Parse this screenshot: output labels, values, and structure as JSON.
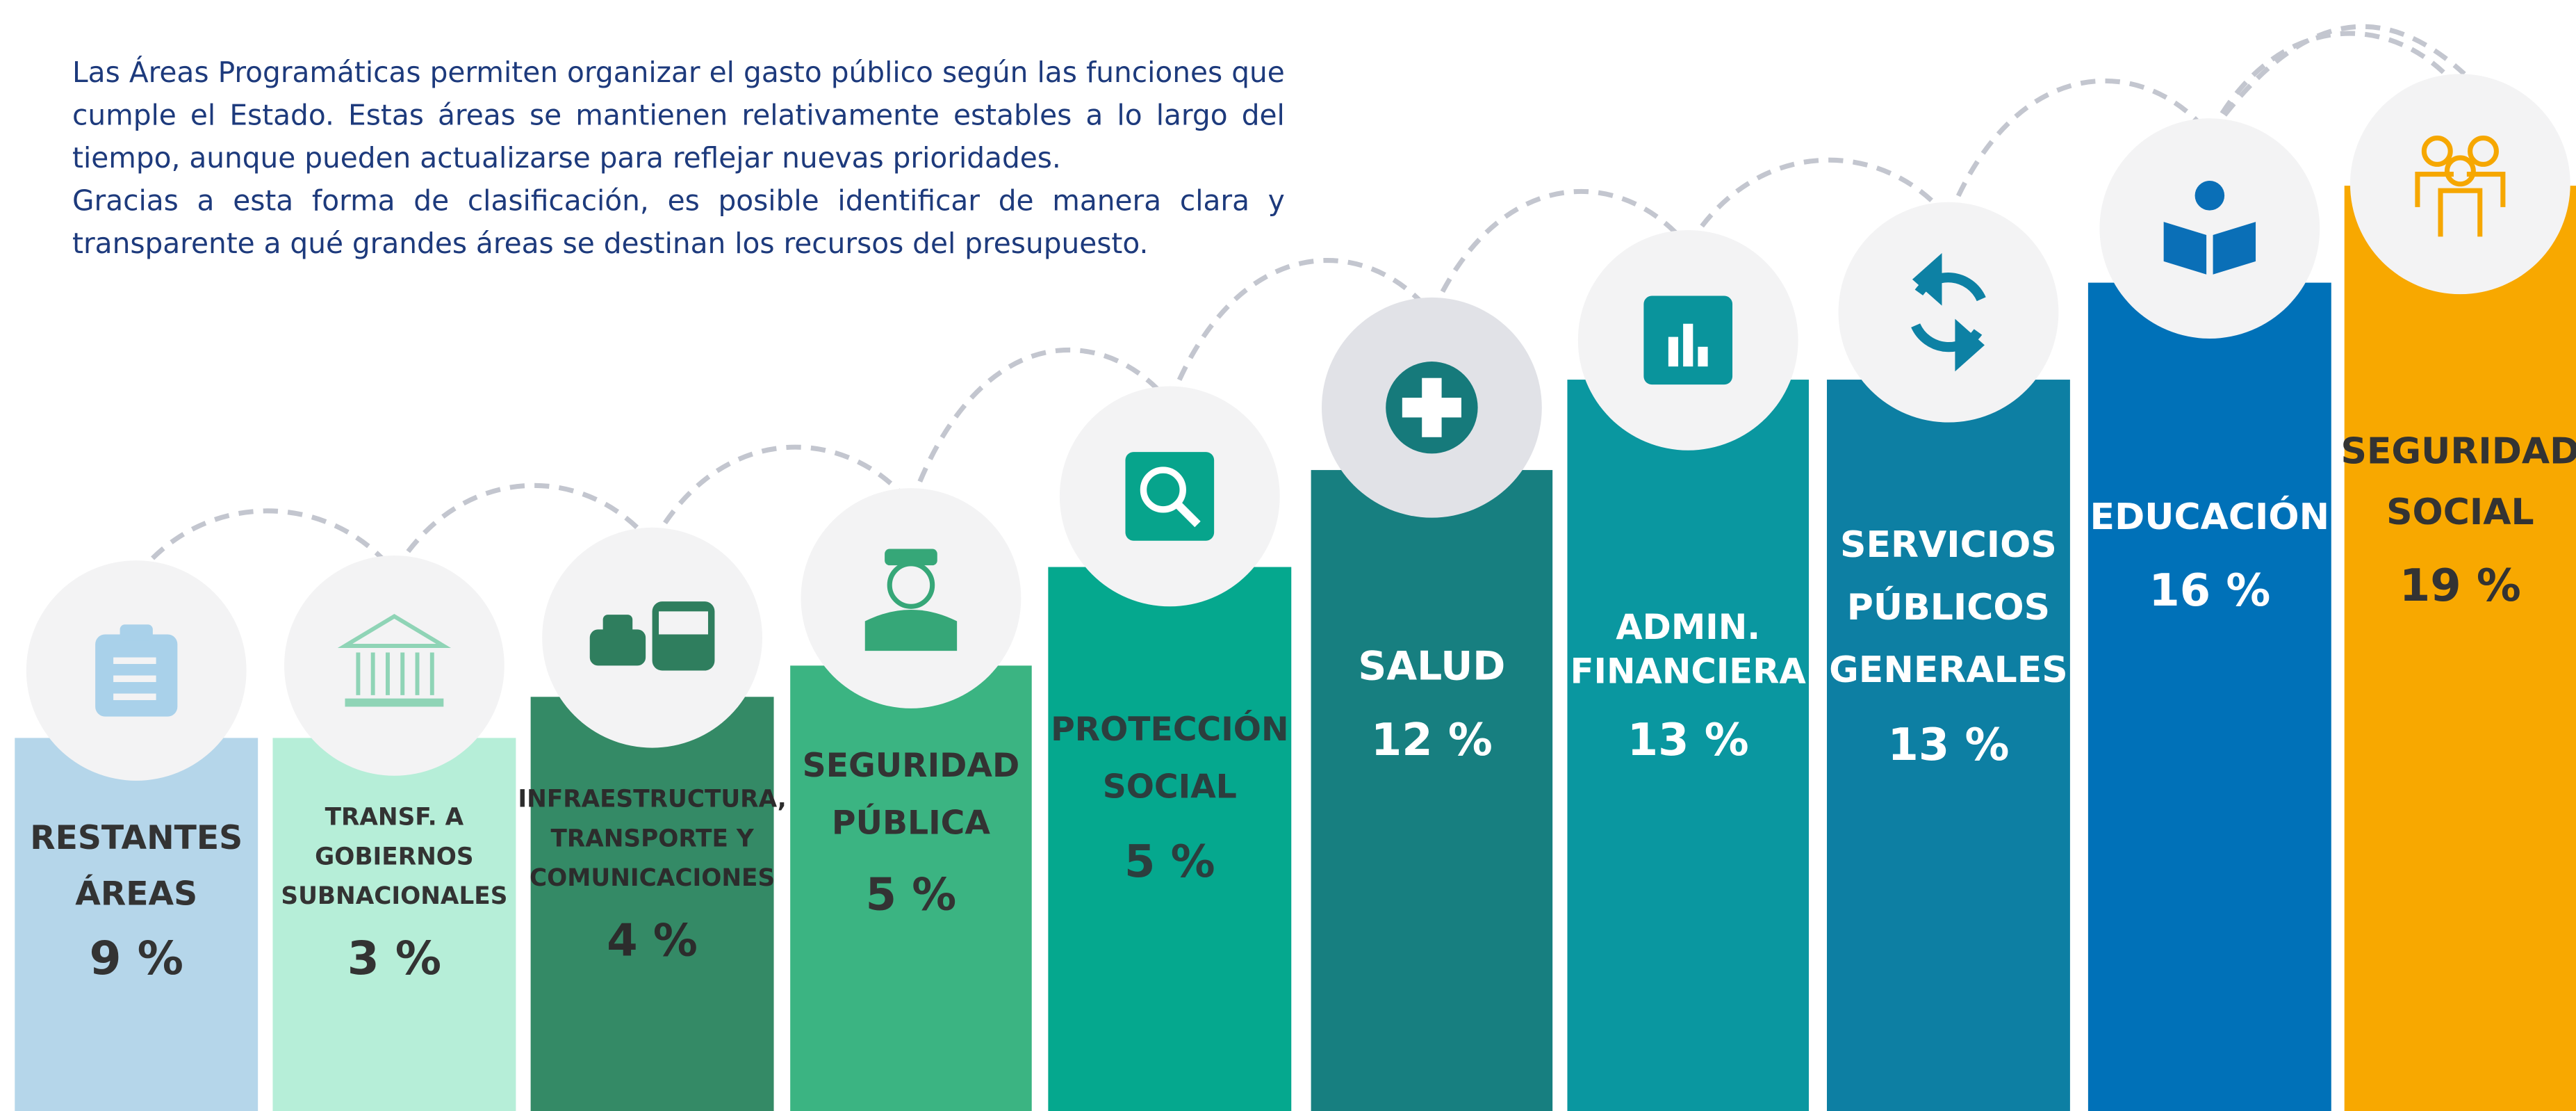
{
  "intro": {
    "paragraphs": [
      "Las Áreas Programáticas permiten organizar el gasto público según las funciones que cumple el Estado. Estas áreas se mantienen relativamente estables a lo largo del tiempo, aunque pueden actualizarse para reflejar nuevas prioridades.",
      "Gracias a esta forma de clasificación, es posible identificar de manera clara y transparente a qué grandes áreas se destinan los recursos del presupuesto."
    ]
  },
  "areas": [
    {
      "lines": [
        "RESTANTES",
        "ÁREAS"
      ],
      "percentage": "9 %"
    },
    {
      "lines": [
        "TRANSF. A",
        "GOBIERNOS",
        "SUBNACIONALES"
      ],
      "percentage": "3 %"
    },
    {
      "lines": [
        "INFRAESTRUCTURA,",
        "TRANSPORTE Y",
        "COMUNICACIONES"
      ],
      "percentage": "4 %"
    },
    {
      "lines": [
        "SEGURIDAD",
        "PÚBLICA"
      ],
      "percentage": "5 %"
    },
    {
      "lines": [
        "PROTECCIÓN",
        "SOCIAL"
      ],
      "percentage": "5 %"
    },
    {
      "lines": [
        "SALUD"
      ],
      "percentage": "12 %"
    },
    {
      "lines": [
        "ADMIN.",
        "FINANCIERA"
      ],
      "percentage": "13 %"
    },
    {
      "lines": [
        "SERVICIOS",
        "PÚBLICOS",
        "GENERALES"
      ],
      "percentage": "13 %"
    },
    {
      "lines": [
        "EDUCACIÓN"
      ],
      "percentage": "16 %"
    },
    {
      "lines": [
        "SEGURIDAD",
        "SOCIAL"
      ],
      "percentage": "19 %"
    }
  ]
}
